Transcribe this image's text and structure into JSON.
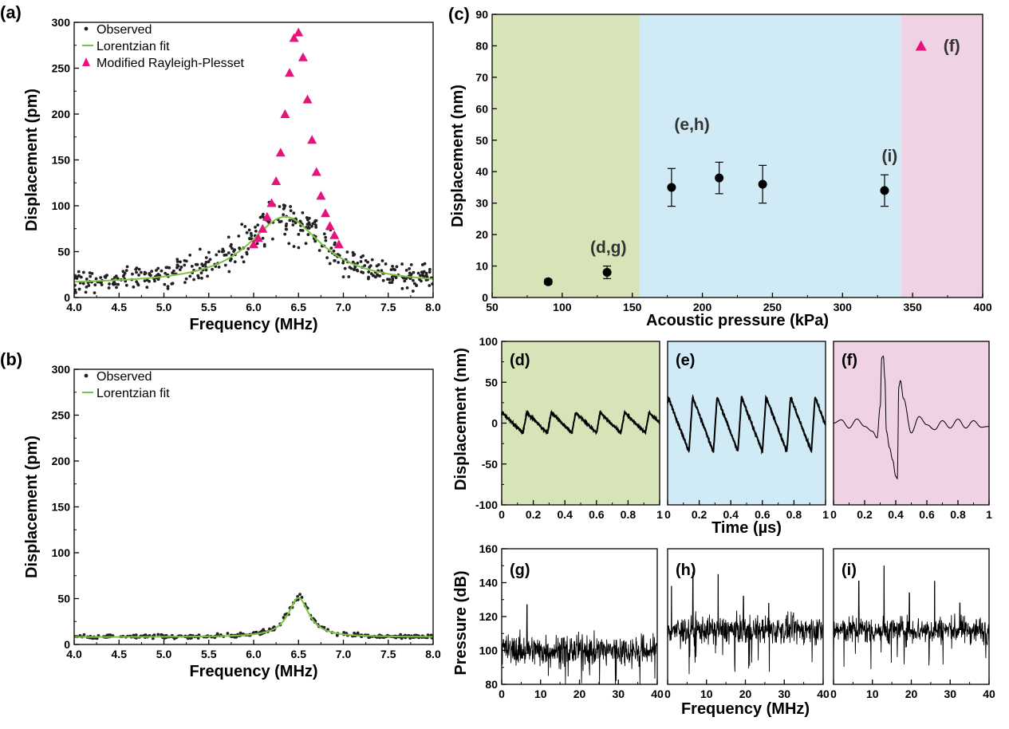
{
  "colors": {
    "observed": "#222222",
    "lorentzian": "#7fc241",
    "rayleigh": "#e6137d",
    "region_green": "#d6e4b8",
    "region_blue": "#d0eaf6",
    "region_pink": "#efd2e3"
  },
  "chart_data": [
    {
      "id": "a",
      "panel_label": "(a)",
      "type": "scatter",
      "xlabel": "Frequency (MHz)",
      "ylabel": "Displacement (pm)",
      "xlim": [
        4.0,
        8.0
      ],
      "ylim": [
        0,
        300
      ],
      "xticks": [
        "4.0",
        "4.5",
        "5.0",
        "5.5",
        "6.0",
        "6.5",
        "7.0",
        "7.5",
        "8.0"
      ],
      "yticks": [
        "0",
        "50",
        "100",
        "150",
        "200",
        "250",
        "300"
      ],
      "legend": [
        "Observed",
        "Lorentzian fit",
        "Modified Rayleigh-Plesset"
      ],
      "legend_position": "top-left",
      "observed_scatter": {
        "n": 420,
        "x_range": [
          4.0,
          8.0
        ],
        "baseline": 14,
        "peak": 88,
        "center": 6.35,
        "width": 0.55,
        "noise": 22
      },
      "lorentzian": {
        "baseline": 14,
        "peak": 88,
        "center": 6.35,
        "half_width": 0.5
      },
      "rayleigh_plesset": {
        "x": [
          6.0,
          6.05,
          6.1,
          6.15,
          6.2,
          6.25,
          6.3,
          6.35,
          6.4,
          6.45,
          6.5,
          6.55,
          6.6,
          6.65,
          6.7,
          6.75,
          6.8,
          6.85,
          6.9,
          6.95
        ],
        "y": [
          58,
          65,
          75,
          88,
          103,
          127,
          158,
          200,
          245,
          283,
          289,
          262,
          216,
          172,
          137,
          111,
          92,
          78,
          68,
          58
        ]
      }
    },
    {
      "id": "b",
      "panel_label": "(b)",
      "type": "scatter",
      "xlabel": "Frequency (MHz)",
      "ylabel": "Displacement (pm)",
      "xlim": [
        4.0,
        8.0
      ],
      "ylim": [
        0,
        300
      ],
      "xticks": [
        "4.0",
        "4.5",
        "5.0",
        "5.5",
        "6.0",
        "6.5",
        "7.0",
        "7.5",
        "8.0"
      ],
      "yticks": [
        "0",
        "50",
        "100",
        "150",
        "200",
        "250",
        "300"
      ],
      "legend": [
        "Observed",
        "Lorentzian fit"
      ],
      "legend_position": "top-left",
      "observed_scatter": {
        "n": 300,
        "x_range": [
          4.0,
          8.0
        ],
        "baseline": 8,
        "peak": 50,
        "center": 6.5,
        "width": 0.15,
        "noise": 4
      },
      "lorentzian": {
        "baseline": 8,
        "peak": 51,
        "center": 6.5,
        "half_width": 0.14
      }
    },
    {
      "id": "c",
      "panel_label": "(c)",
      "type": "scatter",
      "xlabel": "Acoustic pressure (kPa)",
      "ylabel": "Displacement (nm)",
      "xlim": [
        50,
        400
      ],
      "ylim": [
        0,
        90
      ],
      "xticks": [
        "50",
        "100",
        "150",
        "200",
        "250",
        "300",
        "350",
        "400"
      ],
      "yticks": [
        "0",
        "10",
        "20",
        "30",
        "40",
        "50",
        "60",
        "70",
        "80",
        "90"
      ],
      "regions": [
        {
          "from": 50,
          "to": 155,
          "color_key": "region_green"
        },
        {
          "from": 155,
          "to": 342,
          "color_key": "region_blue"
        },
        {
          "from": 342,
          "to": 400,
          "color_key": "region_pink"
        }
      ],
      "points": [
        {
          "x": 90,
          "y": 5,
          "err": 0.8
        },
        {
          "x": 132,
          "y": 8,
          "err": 2
        },
        {
          "x": 178,
          "y": 35,
          "err": 6
        },
        {
          "x": 212,
          "y": 38,
          "err": 5
        },
        {
          "x": 243,
          "y": 36,
          "err": 6
        },
        {
          "x": 330,
          "y": 34,
          "err": 5
        }
      ],
      "triangle_point": {
        "x": 356,
        "y": 80
      },
      "annotations": [
        {
          "text": "(d,g)",
          "x": 120,
          "y": 16
        },
        {
          "text": "(e,h)",
          "x": 180,
          "y": 55
        },
        {
          "text": "(i)",
          "x": 328,
          "y": 45
        },
        {
          "text": "(f)",
          "x": 372,
          "y": 80
        }
      ]
    },
    {
      "id": "d",
      "panel_label": "(d)",
      "type": "line",
      "ylabel": "Displacement (nm)",
      "xlim": [
        0,
        1
      ],
      "ylim": [
        -100,
        100
      ],
      "xticks": [
        "0",
        "0.2",
        "0.4",
        "0.6",
        "0.8",
        "1"
      ],
      "yticks": [
        "-100",
        "-50",
        "0",
        "50",
        "100"
      ],
      "background_key": "region_green",
      "waveform": {
        "kind": "sawtooth",
        "period": 0.155,
        "upper": 13,
        "lower": -12,
        "phase": 0.02,
        "noise": 1.5
      }
    },
    {
      "id": "e",
      "panel_label": "(e)",
      "type": "line",
      "xlabel": "Time (µs)",
      "xlim": [
        0,
        1
      ],
      "ylim": [
        -100,
        100
      ],
      "xticks": [
        "0",
        "0.2",
        "0.4",
        "0.6",
        "0.8",
        "1"
      ],
      "background_key": "region_blue",
      "waveform": {
        "kind": "sawtooth",
        "period": 0.155,
        "upper": 32,
        "lower": -35,
        "phase": 0.02,
        "noise": 2
      }
    },
    {
      "id": "f",
      "panel_label": "(f)",
      "type": "line",
      "xlim": [
        0,
        1
      ],
      "ylim": [
        -100,
        100
      ],
      "xticks": [
        "0",
        "0.2",
        "0.4",
        "0.6",
        "0.8",
        "1"
      ],
      "background_key": "region_pink",
      "waveform": {
        "kind": "collapse",
        "knots_x": [
          0.0,
          0.05,
          0.1,
          0.15,
          0.2,
          0.25,
          0.28,
          0.3,
          0.31,
          0.32,
          0.33,
          0.34,
          0.36,
          0.38,
          0.4,
          0.41,
          0.42,
          0.43,
          0.45,
          0.5,
          0.55,
          0.6,
          0.65,
          0.7,
          0.75,
          0.8,
          0.85,
          0.9,
          0.95,
          1.0
        ],
        "knots_y": [
          0,
          4,
          -6,
          5,
          -4,
          -10,
          -18,
          20,
          80,
          82,
          55,
          -10,
          -30,
          -45,
          -65,
          -68,
          45,
          52,
          30,
          -12,
          8,
          -2,
          -8,
          3,
          -6,
          5,
          -6,
          3,
          -5,
          -4
        ]
      }
    },
    {
      "id": "g",
      "panel_label": "(g)",
      "type": "line",
      "ylabel": "Pressure (dB)",
      "xlim": [
        0,
        40
      ],
      "ylim": [
        80,
        160
      ],
      "xticks": [
        "0",
        "10",
        "20",
        "30",
        "40"
      ],
      "yticks": [
        "80",
        "100",
        "120",
        "140",
        "160"
      ],
      "spectrum": {
        "baseline": 100,
        "noise": 9,
        "spikes": [
          {
            "x": 6.5,
            "y": 127
          }
        ]
      }
    },
    {
      "id": "h",
      "panel_label": "(h)",
      "type": "line",
      "xlabel": "Frequency (MHz)",
      "xlim": [
        0,
        40
      ],
      "ylim": [
        80,
        160
      ],
      "xticks": [
        "0",
        "10",
        "20",
        "30",
        "40"
      ],
      "spectrum": {
        "baseline": 112,
        "noise": 8,
        "spikes": [
          {
            "x": 6.5,
            "y": 146
          },
          {
            "x": 13,
            "y": 145
          },
          {
            "x": 19.5,
            "y": 132
          },
          {
            "x": 26,
            "y": 128
          },
          {
            "x": 1,
            "y": 138
          }
        ]
      }
    },
    {
      "id": "i",
      "panel_label": "(i)",
      "type": "line",
      "xlim": [
        0,
        40
      ],
      "ylim": [
        80,
        160
      ],
      "xticks": [
        "0",
        "10",
        "20",
        "30",
        "40"
      ],
      "spectrum": {
        "baseline": 112,
        "noise": 8,
        "spikes": [
          {
            "x": 6.5,
            "y": 141
          },
          {
            "x": 13,
            "y": 150
          },
          {
            "x": 19.5,
            "y": 134
          },
          {
            "x": 26,
            "y": 141
          },
          {
            "x": 32.5,
            "y": 128
          }
        ]
      }
    }
  ]
}
